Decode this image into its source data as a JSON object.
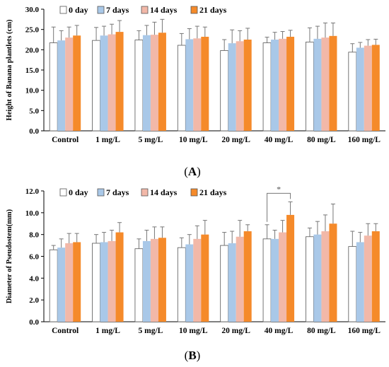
{
  "colors": [
    "#ffffff",
    "#a9c8e8",
    "#f2b8a8",
    "#f58a2a"
  ],
  "chart_data": [
    {
      "type": "bar",
      "panel_label": "A",
      "ylabel": "Height of Banana plantlets (cm)",
      "xlabel": "",
      "ylim": [
        0,
        30
      ],
      "yticks": [
        "0.0",
        "5.0",
        "10.0",
        "15.0",
        "20.0",
        "25.0",
        "30.0"
      ],
      "legend_position": "top-left",
      "categories": [
        "Control",
        "1 mg/L",
        "5 mg/L",
        "10 mg/L",
        "20 mg/L",
        "40 mg/L",
        "80 mg/L",
        "160 mg/L"
      ],
      "series": [
        {
          "name": "0 day",
          "values": [
            21.7,
            22.3,
            22.4,
            21.1,
            19.8,
            21.7,
            21.9,
            19.4
          ],
          "errors": [
            3.9,
            3.2,
            2.3,
            2.9,
            2.7,
            1.4,
            3.5,
            2.1
          ]
        },
        {
          "name": "7 days",
          "values": [
            22.3,
            23.5,
            23.6,
            22.6,
            21.6,
            22.5,
            22.7,
            20.5
          ],
          "errors": [
            2.4,
            2.3,
            2.4,
            2.6,
            3.3,
            1.8,
            3.1,
            1.3
          ]
        },
        {
          "name": "14 days",
          "values": [
            23.0,
            23.8,
            23.7,
            22.8,
            22.1,
            22.7,
            23.0,
            21.0
          ],
          "errors": [
            2.6,
            2.5,
            3.1,
            3.0,
            2.6,
            1.8,
            3.6,
            1.5
          ]
        },
        {
          "name": "21 days",
          "values": [
            23.5,
            24.4,
            24.2,
            23.2,
            22.5,
            23.2,
            23.4,
            21.2
          ],
          "errors": [
            2.5,
            2.8,
            3.3,
            2.4,
            2.8,
            1.6,
            3.2,
            1.4
          ]
        }
      ],
      "annotations": []
    },
    {
      "type": "bar",
      "panel_label": "B",
      "ylabel": "Diameter of Pseudostem(mm)",
      "xlabel": "",
      "ylim": [
        0,
        12
      ],
      "yticks": [
        "0.0",
        "2.0",
        "4.0",
        "6.0",
        "8.0",
        "10.0",
        "12.0"
      ],
      "legend_position": "top-left",
      "categories": [
        "Control",
        "1 mg/L",
        "5 mg/L",
        "10 mg/L",
        "20 mg/L",
        "40 mg/L",
        "80 mg/L",
        "160 mg/L"
      ],
      "series": [
        {
          "name": "0 day",
          "values": [
            6.6,
            7.2,
            6.7,
            6.8,
            7.0,
            7.6,
            7.8,
            6.9
          ],
          "errors": [
            0.4,
            0.8,
            0.9,
            0.9,
            1.2,
            1.3,
            0.8,
            1.4
          ]
        },
        {
          "name": "7 days",
          "values": [
            6.8,
            7.3,
            7.4,
            7.1,
            7.2,
            7.6,
            8.0,
            7.3
          ],
          "errors": [
            0.8,
            0.9,
            1.0,
            0.9,
            1.1,
            0.8,
            1.2,
            0.9
          ]
        },
        {
          "name": "14 days",
          "values": [
            7.2,
            7.4,
            7.6,
            7.6,
            7.8,
            8.2,
            8.3,
            7.9
          ],
          "errors": [
            0.9,
            1.0,
            1.1,
            1.2,
            1.5,
            1.1,
            1.5,
            1.1
          ]
        },
        {
          "name": "21 days",
          "values": [
            7.3,
            8.2,
            7.7,
            8.0,
            8.3,
            9.8,
            9.0,
            8.3
          ],
          "errors": [
            0.8,
            0.9,
            1.0,
            1.3,
            0.6,
            1.2,
            1.8,
            0.7
          ]
        }
      ],
      "annotations": [
        {
          "text": "*",
          "category": "40 mg/L",
          "from_series": 0,
          "to_series": 3
        }
      ]
    }
  ]
}
